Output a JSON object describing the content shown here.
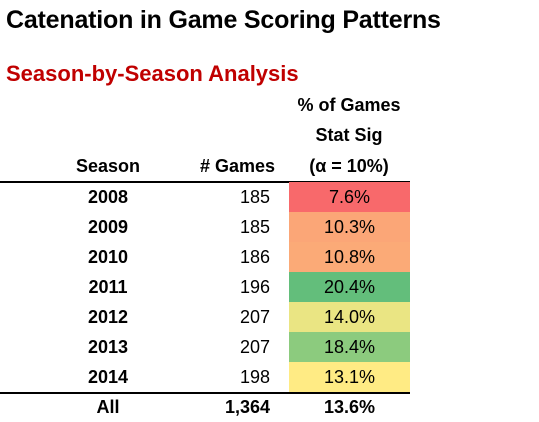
{
  "title": "Catenation in Game Scoring Patterns",
  "subtitle": "Season-by-Season Analysis",
  "headers": {
    "season": "Season",
    "games": "# Games",
    "pct_line1": "% of Games",
    "pct_line2": "Stat Sig",
    "pct_line3": "(α = 10%)"
  },
  "rows": [
    {
      "season": "2008",
      "games": "185",
      "pct": "7.6%",
      "color": "#f8696b"
    },
    {
      "season": "2009",
      "games": "185",
      "pct": "10.3%",
      "color": "#fba677"
    },
    {
      "season": "2010",
      "games": "186",
      "pct": "10.8%",
      "color": "#fbaa77"
    },
    {
      "season": "2011",
      "games": "196",
      "pct": "20.4%",
      "color": "#63be7b"
    },
    {
      "season": "2012",
      "games": "207",
      "pct": "14.0%",
      "color": "#eae583"
    },
    {
      "season": "2013",
      "games": "207",
      "pct": "18.4%",
      "color": "#8ccb7e"
    },
    {
      "season": "2014",
      "games": "198",
      "pct": "13.1%",
      "color": "#ffeb84"
    }
  ],
  "total": {
    "season": "All",
    "games": "1,364",
    "pct": "13.6%"
  }
}
